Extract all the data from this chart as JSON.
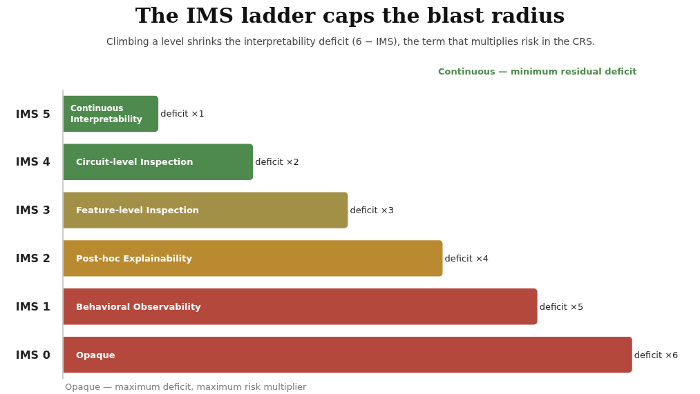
{
  "chart_data": {
    "type": "bar",
    "orientation": "horizontal",
    "title": "The IMS ladder caps the blast radius",
    "subtitle": "Climbing a level shrinks the interpretability deficit (6 − IMS), the term that multiplies risk in the CRS.",
    "categories": [
      "IMS 5",
      "IMS 4",
      "IMS 3",
      "IMS 2",
      "IMS 1",
      "IMS 0"
    ],
    "values": [
      1,
      2,
      3,
      4,
      5,
      6
    ],
    "colors": [
      "#4e8a4e",
      "#4e8a4e",
      "#a39047",
      "#b98a30",
      "#b5483d",
      "#b5483d"
    ],
    "value_labels": [
      "deficit ×1",
      "deficit ×2",
      "deficit ×3",
      "deficit ×4",
      "deficit ×5",
      "deficit ×6"
    ],
    "annotations": [
      "Continuous Interpretability",
      "Circuit-level Inspection",
      "Feature-level Inspection",
      "Post-hoc Explainability",
      "Behavioral Observability",
      "Opaque",
      "Continuous — minimum residual deficit",
      "Opaque — maximum deficit, maximum risk multiplier"
    ]
  }
}
